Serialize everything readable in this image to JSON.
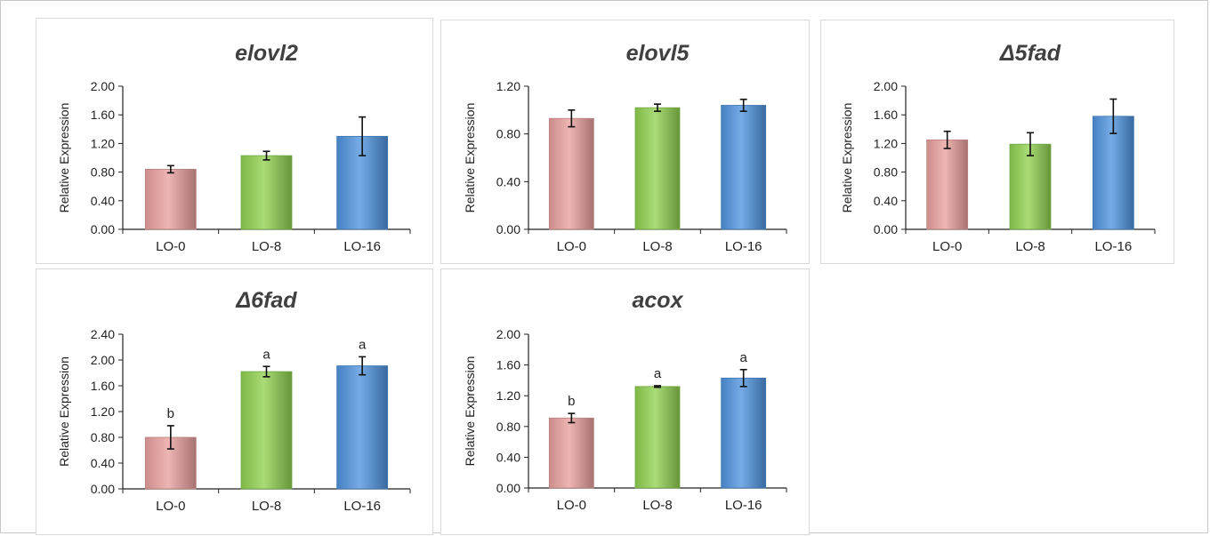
{
  "colors": {
    "LO-0": "#e8a09e",
    "LO-8": "#8fd14f",
    "LO-16": "#4f93de",
    "axis": "#222222"
  },
  "chart_data": [
    {
      "type": "bar",
      "title": "elovl2",
      "ylabel": "Relative Expression",
      "categories": [
        "LO-0",
        "LO-8",
        "LO-16"
      ],
      "values": [
        0.84,
        1.03,
        1.3
      ],
      "errors": [
        0.05,
        0.06,
        0.27
      ],
      "sig_labels": [
        "",
        "",
        ""
      ],
      "ylim": [
        0,
        2.0
      ],
      "yticks": [
        "0.00",
        "0.40",
        "0.80",
        "1.20",
        "1.60",
        "2.00"
      ]
    },
    {
      "type": "bar",
      "title": "elovl5",
      "ylabel": "Relative Expression",
      "categories": [
        "LO-0",
        "LO-8",
        "LO-16"
      ],
      "values": [
        0.93,
        1.02,
        1.04
      ],
      "errors": [
        0.07,
        0.03,
        0.05
      ],
      "sig_labels": [
        "",
        "",
        ""
      ],
      "ylim": [
        0,
        1.2
      ],
      "yticks": [
        "0.00",
        "0.40",
        "0.80",
        "1.20"
      ]
    },
    {
      "type": "bar",
      "title": "Δ5fad",
      "ylabel": "Relative Expression",
      "categories": [
        "LO-0",
        "LO-8",
        "LO-16"
      ],
      "values": [
        1.25,
        1.19,
        1.58
      ],
      "errors": [
        0.12,
        0.16,
        0.24
      ],
      "sig_labels": [
        "",
        "",
        ""
      ],
      "ylim": [
        0,
        2.0
      ],
      "yticks": [
        "0.00",
        "0.40",
        "0.80",
        "1.20",
        "1.60",
        "2.00"
      ]
    },
    {
      "type": "bar",
      "title": "Δ6fad",
      "ylabel": "Relative Expression",
      "categories": [
        "LO-0",
        "LO-8",
        "LO-16"
      ],
      "values": [
        0.8,
        1.82,
        1.91
      ],
      "errors": [
        0.18,
        0.08,
        0.14
      ],
      "sig_labels": [
        "b",
        "a",
        "a"
      ],
      "ylim": [
        0,
        2.4
      ],
      "yticks": [
        "0.00",
        "0.40",
        "0.80",
        "1.20",
        "1.60",
        "2.00",
        "2.40"
      ]
    },
    {
      "type": "bar",
      "title": "acox",
      "ylabel": "Relative Expression",
      "categories": [
        "LO-0",
        "LO-8",
        "LO-16"
      ],
      "values": [
        0.91,
        1.32,
        1.43
      ],
      "errors": [
        0.06,
        0.01,
        0.11
      ],
      "sig_labels": [
        "b",
        "a",
        "a"
      ],
      "ylim": [
        0,
        2.0
      ],
      "yticks": [
        "0.00",
        "0.40",
        "0.80",
        "1.20",
        "1.60",
        "2.00"
      ]
    }
  ]
}
